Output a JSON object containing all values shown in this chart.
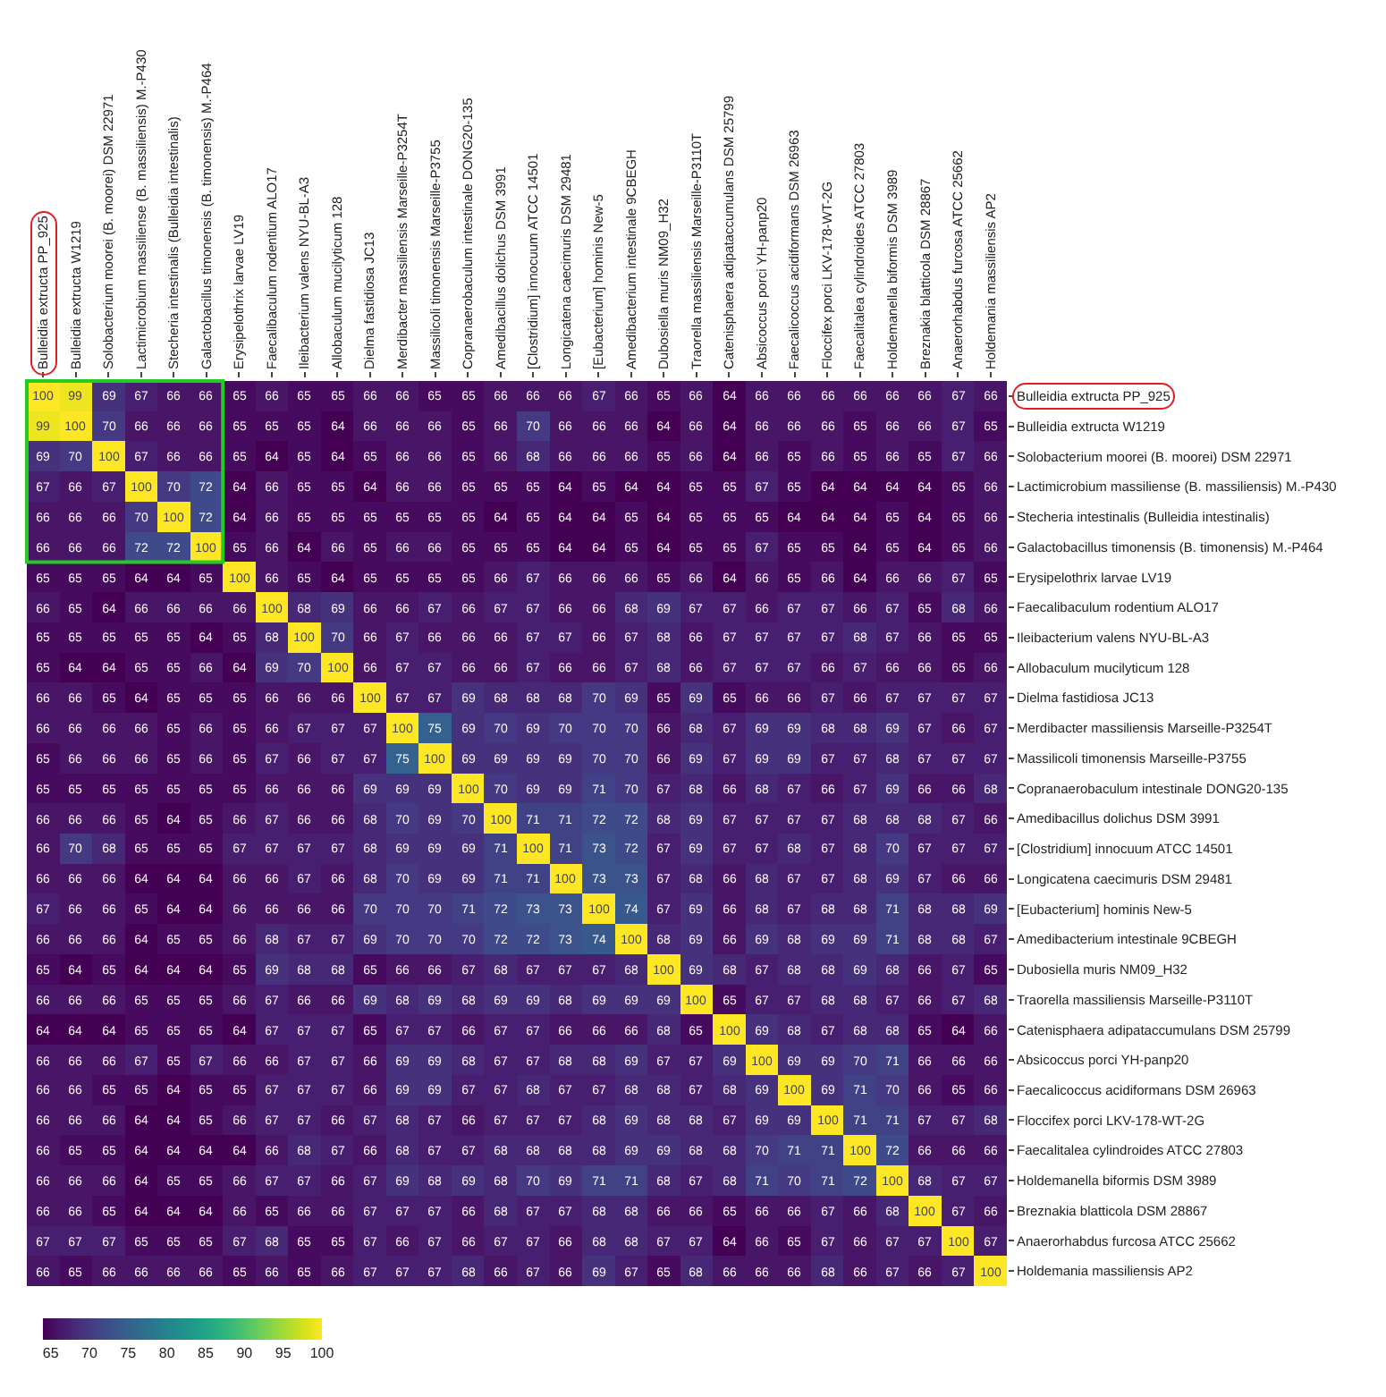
{
  "chart_data": {
    "type": "heatmap",
    "clim": [
      64,
      100
    ],
    "cticks": [
      65,
      70,
      75,
      80,
      85,
      90,
      95,
      100
    ],
    "data_labels": true,
    "categories": [
      "Bulleidia extructa PP_925",
      "Bulleidia extructa W1219",
      "Solobacterium moorei (B. moorei) DSM 22971",
      "Lactimicrobium massiliense (B. massiliensis) M.-P430",
      "Stecheria intestinalis (Bulleidia intestinalis)",
      "Galactobacillus timonensis (B. timonensis) M.-P464",
      "Erysipelothrix larvae LV19",
      "Faecalibaculum rodentium ALO17",
      "Ileibacterium valens NYU-BL-A3",
      "Allobaculum mucilyticum 128",
      "Dielma fastidiosa JC13",
      "Merdibacter massiliensis Marseille-P3254T",
      "Massilicoli timonensis Marseille-P3755",
      "Copranaerobaculum intestinale DONG20-135",
      "Amedibacillus dolichus DSM 3991",
      "[Clostridium] innocuum ATCC 14501",
      "Longicatena caecimuris DSM 29481",
      "[Eubacterium] hominis New-5",
      "Amedibacterium intestinale 9CBEGH",
      "Dubosiella muris NM09_H32",
      "Traorella massiliensis Marseille-P3110T",
      "Catenisphaera adipataccumulans DSM 25799",
      "Absicoccus porci YH-panp20",
      "Faecalicoccus acidiformans DSM 26963",
      "Floccifex porci LKV-178-WT-2G",
      "Faecalitalea cylindroides ATCC 27803",
      "Holdemanella biformis DSM 3989",
      "Breznakia blatticola DSM 28867",
      "Anaerorhabdus furcosa ATCC 25662",
      "Holdemania massiliensis AP2"
    ],
    "y_categories": [
      "Bulleidia extructa PP_925",
      "Bulleidia extructa W1219",
      "Solobacterium moorei (B. moorei) DSM 22971",
      "Lactimicrobium massiliense (B. massiliensis) M.-P430",
      "Stecheria intestinalis (Bulleidia intestinalis)",
      "Galactobacillus timonensis (B. timonensis) M.-P464",
      "Erysipelothrix larvae LV19",
      "Faecalibaculum rodentium ALO17",
      "Ileibacterium valens NYU-BL-A3",
      "Allobaculum mucilyticum 128",
      "Dielma fastidiosa JC13",
      "Merdibacter massiliensis Marseille-P3254T",
      "Massilicoli timonensis Marseille-P3755",
      "Copranaerobaculum intestinale DONG20-135",
      "Amedibacillus dolichus DSM 3991",
      "[Clostridium] innocuum ATCC 14501",
      "Longicatena caecimuris DSM 29481",
      "[Eubacterium] hominis New-5",
      "Amedibacterium intestinale 9CBEGH",
      "Dubosiella muris NM09_H32",
      "Traorella massiliensis Marseille-P3110T",
      "Catenisphaera adipataccumulans DSM 25799",
      "Absicoccus porci YH-panp20",
      "Faecalicoccus acidiformans DSM 26963",
      "Floccifex porci LKV-178-WT-2G",
      "Faecalitalea cylindroides ATCC 27803",
      "Holdemanella biformis DSM 3989",
      "Breznakia blatticola DSM 28867",
      "Anaerorhabdus furcosa ATCC 25662",
      "Holdemania massiliensis AP2"
    ],
    "cells": [
      [
        100,
        99,
        69,
        67,
        66,
        66,
        65,
        66,
        65,
        65,
        66,
        66,
        65,
        65,
        66,
        66,
        66,
        67,
        66,
        65,
        66,
        64,
        66,
        66,
        66,
        66,
        66,
        66,
        67,
        66
      ],
      [
        99,
        100,
        70,
        66,
        66,
        66,
        65,
        65,
        65,
        64,
        66,
        66,
        66,
        65,
        66,
        70,
        66,
        66,
        66,
        64,
        66,
        64,
        66,
        66,
        66,
        65,
        66,
        66,
        67,
        65
      ],
      [
        69,
        70,
        100,
        67,
        66,
        66,
        65,
        64,
        65,
        64,
        65,
        66,
        66,
        65,
        66,
        68,
        66,
        66,
        66,
        65,
        66,
        64,
        66,
        65,
        66,
        65,
        66,
        65,
        67,
        66
      ],
      [
        67,
        66,
        67,
        100,
        70,
        72,
        64,
        66,
        65,
        65,
        64,
        66,
        66,
        65,
        65,
        65,
        64,
        65,
        64,
        64,
        65,
        65,
        67,
        65,
        64,
        64,
        64,
        64,
        65,
        66
      ],
      [
        66,
        66,
        66,
        70,
        100,
        72,
        64,
        66,
        65,
        65,
        65,
        65,
        65,
        65,
        64,
        65,
        64,
        64,
        65,
        64,
        65,
        65,
        65,
        64,
        64,
        64,
        65,
        64,
        65,
        66
      ],
      [
        66,
        66,
        66,
        72,
        72,
        100,
        65,
        66,
        64,
        66,
        65,
        66,
        66,
        65,
        65,
        65,
        64,
        64,
        65,
        64,
        65,
        65,
        67,
        65,
        65,
        64,
        65,
        64,
        65,
        66
      ],
      [
        65,
        65,
        65,
        64,
        64,
        65,
        100,
        66,
        65,
        64,
        65,
        65,
        65,
        65,
        66,
        67,
        66,
        66,
        66,
        65,
        66,
        64,
        66,
        65,
        66,
        64,
        66,
        66,
        67,
        65
      ],
      [
        66,
        65,
        64,
        66,
        66,
        66,
        66,
        100,
        68,
        69,
        66,
        66,
        67,
        66,
        67,
        67,
        66,
        66,
        68,
        69,
        67,
        67,
        66,
        67,
        67,
        66,
        67,
        65,
        68,
        66
      ],
      [
        65,
        65,
        65,
        65,
        65,
        64,
        65,
        68,
        100,
        70,
        66,
        67,
        66,
        66,
        66,
        67,
        67,
        66,
        67,
        68,
        66,
        67,
        67,
        67,
        67,
        68,
        67,
        66,
        65,
        65
      ],
      [
        65,
        64,
        64,
        65,
        65,
        66,
        64,
        69,
        70,
        100,
        66,
        67,
        67,
        66,
        66,
        67,
        66,
        66,
        67,
        68,
        66,
        67,
        67,
        67,
        66,
        67,
        66,
        66,
        65,
        66
      ],
      [
        66,
        66,
        65,
        64,
        65,
        65,
        65,
        66,
        66,
        66,
        100,
        67,
        67,
        69,
        68,
        68,
        68,
        70,
        69,
        65,
        69,
        65,
        66,
        66,
        67,
        66,
        67,
        67,
        67,
        67
      ],
      [
        66,
        66,
        66,
        66,
        65,
        66,
        65,
        66,
        67,
        67,
        67,
        100,
        75,
        69,
        70,
        69,
        70,
        70,
        70,
        66,
        68,
        67,
        69,
        69,
        68,
        68,
        69,
        67,
        66,
        67
      ],
      [
        65,
        66,
        66,
        66,
        65,
        66,
        65,
        67,
        66,
        67,
        67,
        75,
        100,
        69,
        69,
        69,
        69,
        70,
        70,
        66,
        69,
        67,
        69,
        69,
        67,
        67,
        68,
        67,
        67,
        67
      ],
      [
        65,
        65,
        65,
        65,
        65,
        65,
        65,
        66,
        66,
        66,
        69,
        69,
        69,
        100,
        70,
        69,
        69,
        71,
        70,
        67,
        68,
        66,
        68,
        67,
        66,
        67,
        69,
        66,
        66,
        68
      ],
      [
        66,
        66,
        66,
        65,
        64,
        65,
        66,
        67,
        66,
        66,
        68,
        70,
        69,
        70,
        100,
        71,
        71,
        72,
        72,
        68,
        69,
        67,
        67,
        67,
        67,
        68,
        68,
        68,
        67,
        66
      ],
      [
        66,
        70,
        68,
        65,
        65,
        65,
        67,
        67,
        67,
        67,
        68,
        69,
        69,
        69,
        71,
        100,
        71,
        73,
        72,
        67,
        69,
        67,
        67,
        68,
        67,
        68,
        70,
        67,
        67,
        67
      ],
      [
        66,
        66,
        66,
        64,
        64,
        64,
        66,
        66,
        67,
        66,
        68,
        70,
        69,
        69,
        71,
        71,
        100,
        73,
        73,
        67,
        68,
        66,
        68,
        67,
        67,
        68,
        69,
        67,
        66,
        66
      ],
      [
        67,
        66,
        66,
        65,
        64,
        64,
        66,
        66,
        66,
        66,
        70,
        70,
        70,
        71,
        72,
        73,
        73,
        100,
        74,
        67,
        69,
        66,
        68,
        67,
        68,
        68,
        71,
        68,
        68,
        69
      ],
      [
        66,
        66,
        66,
        64,
        65,
        65,
        66,
        68,
        67,
        67,
        69,
        70,
        70,
        70,
        72,
        72,
        73,
        74,
        100,
        68,
        69,
        66,
        69,
        68,
        69,
        69,
        71,
        68,
        68,
        67
      ],
      [
        65,
        64,
        65,
        64,
        64,
        64,
        65,
        69,
        68,
        68,
        65,
        66,
        66,
        67,
        68,
        67,
        67,
        67,
        68,
        100,
        69,
        68,
        67,
        68,
        68,
        69,
        68,
        66,
        67,
        65
      ],
      [
        66,
        66,
        66,
        65,
        65,
        65,
        66,
        67,
        66,
        66,
        69,
        68,
        69,
        68,
        69,
        69,
        68,
        69,
        69,
        69,
        100,
        65,
        67,
        67,
        68,
        68,
        67,
        66,
        67,
        68
      ],
      [
        64,
        64,
        64,
        65,
        65,
        65,
        64,
        67,
        67,
        67,
        65,
        67,
        67,
        66,
        67,
        67,
        66,
        66,
        66,
        68,
        65,
        100,
        69,
        68,
        67,
        68,
        68,
        65,
        64,
        66
      ],
      [
        66,
        66,
        66,
        67,
        65,
        67,
        66,
        66,
        67,
        67,
        66,
        69,
        69,
        68,
        67,
        67,
        68,
        68,
        69,
        67,
        67,
        69,
        100,
        69,
        69,
        70,
        71,
        66,
        66,
        66
      ],
      [
        66,
        66,
        65,
        65,
        64,
        65,
        65,
        67,
        67,
        67,
        66,
        69,
        69,
        67,
        67,
        68,
        67,
        67,
        68,
        68,
        67,
        68,
        69,
        100,
        69,
        71,
        70,
        66,
        65,
        66
      ],
      [
        66,
        66,
        66,
        64,
        64,
        65,
        66,
        67,
        67,
        66,
        67,
        68,
        67,
        66,
        67,
        67,
        67,
        68,
        69,
        68,
        68,
        67,
        69,
        69,
        100,
        71,
        71,
        67,
        67,
        68
      ],
      [
        66,
        65,
        65,
        64,
        64,
        64,
        64,
        66,
        68,
        67,
        66,
        68,
        67,
        67,
        68,
        68,
        68,
        68,
        69,
        69,
        68,
        68,
        70,
        71,
        71,
        100,
        72,
        66,
        66,
        66
      ],
      [
        66,
        66,
        66,
        64,
        65,
        65,
        66,
        67,
        67,
        66,
        67,
        69,
        68,
        69,
        68,
        70,
        69,
        71,
        71,
        68,
        67,
        68,
        71,
        70,
        71,
        72,
        100,
        68,
        67,
        67
      ],
      [
        66,
        66,
        65,
        64,
        64,
        64,
        66,
        65,
        66,
        66,
        67,
        67,
        67,
        66,
        68,
        67,
        67,
        68,
        68,
        66,
        66,
        65,
        66,
        66,
        67,
        66,
        68,
        100,
        67,
        66
      ],
      [
        67,
        67,
        67,
        65,
        65,
        65,
        67,
        68,
        65,
        65,
        67,
        66,
        67,
        66,
        67,
        67,
        66,
        68,
        68,
        67,
        67,
        64,
        66,
        65,
        67,
        66,
        67,
        67,
        100,
        67
      ],
      [
        66,
        65,
        66,
        66,
        66,
        66,
        65,
        66,
        65,
        66,
        67,
        67,
        67,
        68,
        66,
        67,
        66,
        69,
        67,
        65,
        68,
        66,
        66,
        66,
        68,
        66,
        67,
        66,
        67,
        100
      ]
    ]
  }
}
